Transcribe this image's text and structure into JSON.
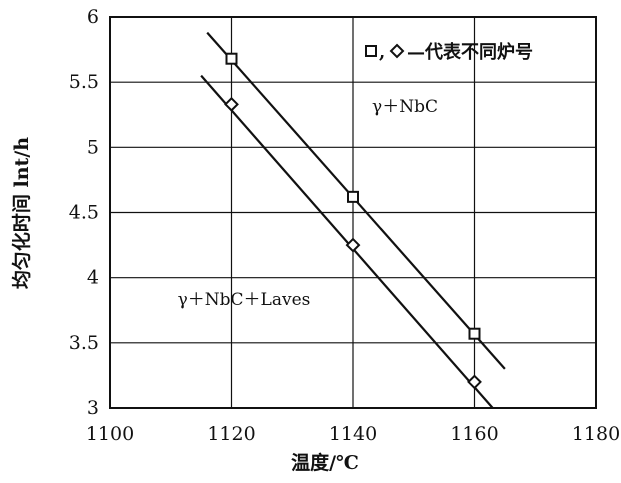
{
  "chart_data": {
    "type": "scatter",
    "xlabel": "温度/℃",
    "ylabel": "均匀化时间 lnt/h",
    "xlim": [
      1100,
      1180
    ],
    "ylim": [
      3,
      6
    ],
    "x_ticks": [
      "1100",
      "1120",
      "1140",
      "1160",
      "1180"
    ],
    "y_ticks": [
      "3",
      "3.5",
      "4",
      "4.5",
      "5",
      "5.5",
      "6"
    ],
    "grid": true,
    "legend": {
      "position": "top-right",
      "text": "—代表不同炉号",
      "separator": ","
    },
    "annotations": [
      "γ＋NbC",
      "γ＋NbC＋Laves"
    ],
    "series": [
      {
        "marker": "square",
        "x": [
          1120,
          1140,
          1160
        ],
        "y": [
          5.68,
          4.62,
          3.57
        ],
        "fit_line": {
          "x": [
            1116,
            1165
          ],
          "y": [
            5.88,
            3.3
          ]
        }
      },
      {
        "marker": "diamond",
        "x": [
          1120,
          1140,
          1160
        ],
        "y": [
          5.33,
          4.25,
          3.2
        ],
        "fit_line": {
          "x": [
            1115,
            1163
          ],
          "y": [
            5.55,
            3.0
          ]
        }
      }
    ]
  }
}
